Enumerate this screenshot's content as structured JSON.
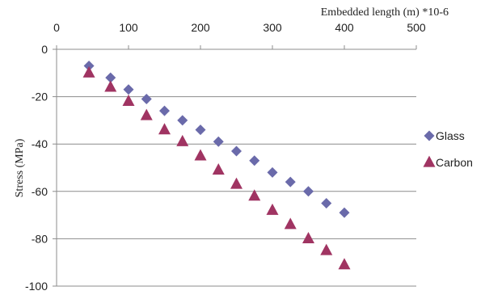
{
  "chart_data": {
    "type": "scatter",
    "xlabel": "Embedded length (m) *10-6",
    "ylabel": "Stress  (MPa)",
    "xlim": [
      0,
      500
    ],
    "ylim": [
      -100,
      0
    ],
    "x_ticks": [
      0,
      100,
      200,
      300,
      400,
      500
    ],
    "y_ticks": [
      0,
      -20,
      -40,
      -60,
      -80,
      -100
    ],
    "x_ticks_text": [
      "0",
      "100",
      "200",
      "300",
      "400",
      "500"
    ],
    "y_ticks_text": [
      "0",
      "-20",
      "-40",
      "-60",
      "-80",
      "-100"
    ],
    "x_axis_position": "top",
    "grid": "horizontal",
    "legend_position": "right",
    "series": [
      {
        "name": "Glass",
        "marker": "diamond",
        "color": "#6a6aaa",
        "x": [
          45,
          75,
          100,
          125,
          150,
          175,
          200,
          225,
          250,
          275,
          300,
          325,
          350,
          375,
          400
        ],
        "y": [
          -7,
          -12,
          -17,
          -21,
          -26,
          -30,
          -34,
          -39,
          -43,
          -47,
          -52,
          -56,
          -60,
          -65,
          -69
        ]
      },
      {
        "name": "Carbon",
        "marker": "triangle",
        "color": "#a03462",
        "x": [
          45,
          75,
          100,
          125,
          150,
          175,
          200,
          225,
          250,
          275,
          300,
          325,
          350,
          375,
          400
        ],
        "y": [
          -10,
          -16,
          -22,
          -28,
          -34,
          -39,
          -45,
          -51,
          -57,
          -62,
          -68,
          -74,
          -80,
          -85,
          -91
        ]
      }
    ]
  }
}
